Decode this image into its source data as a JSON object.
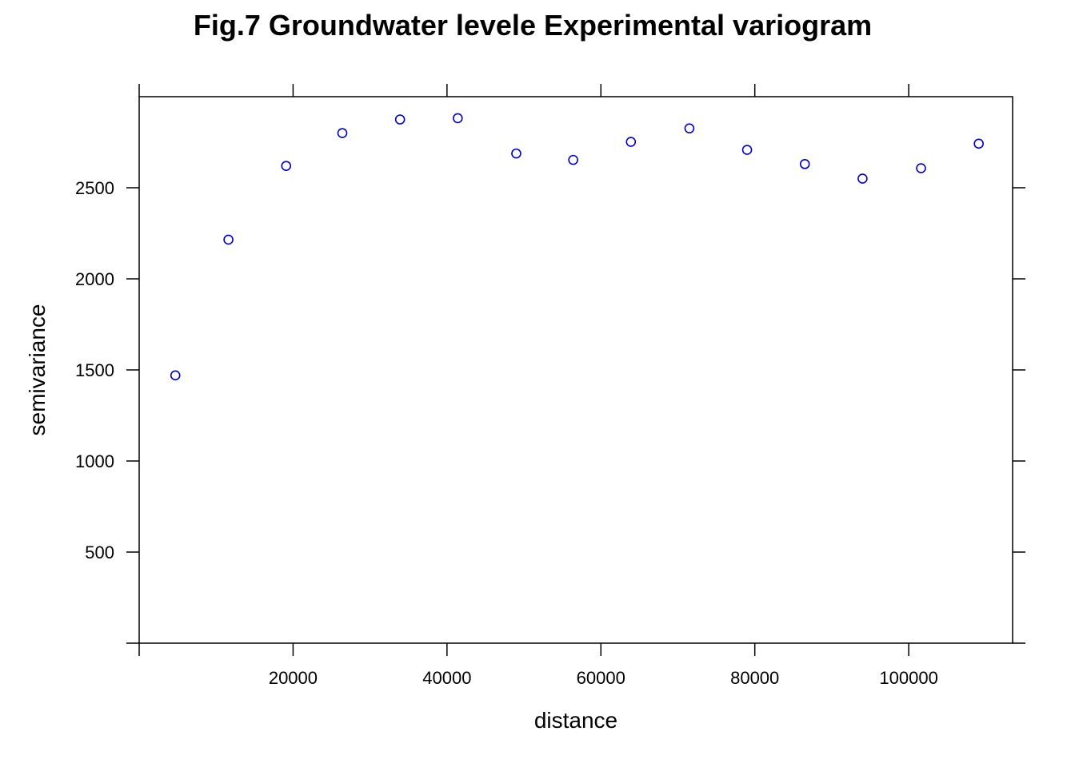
{
  "chart_data": {
    "type": "scatter",
    "title": "Fig.7 Groundwater levele Experimental variogram",
    "xlabel": "distance",
    "ylabel": "semivariance",
    "xlim": [
      0,
      113500
    ],
    "ylim": [
      0,
      3000
    ],
    "x_ticks": [
      20000,
      40000,
      60000,
      80000,
      100000
    ],
    "y_ticks": [
      500,
      1000,
      1500,
      2000,
      2500
    ],
    "point_color": "#0000cc",
    "grid": false,
    "series": [
      {
        "x": [
          4700,
          11600,
          19100,
          26400,
          33900,
          41400,
          49000,
          56400,
          63900,
          71500,
          79000,
          86500,
          94000,
          101600,
          109100
        ],
        "y": [
          1470,
          2215,
          2620,
          2800,
          2875,
          2882,
          2688,
          2653,
          2752,
          2826,
          2708,
          2630,
          2550,
          2607,
          2742
        ]
      }
    ]
  }
}
